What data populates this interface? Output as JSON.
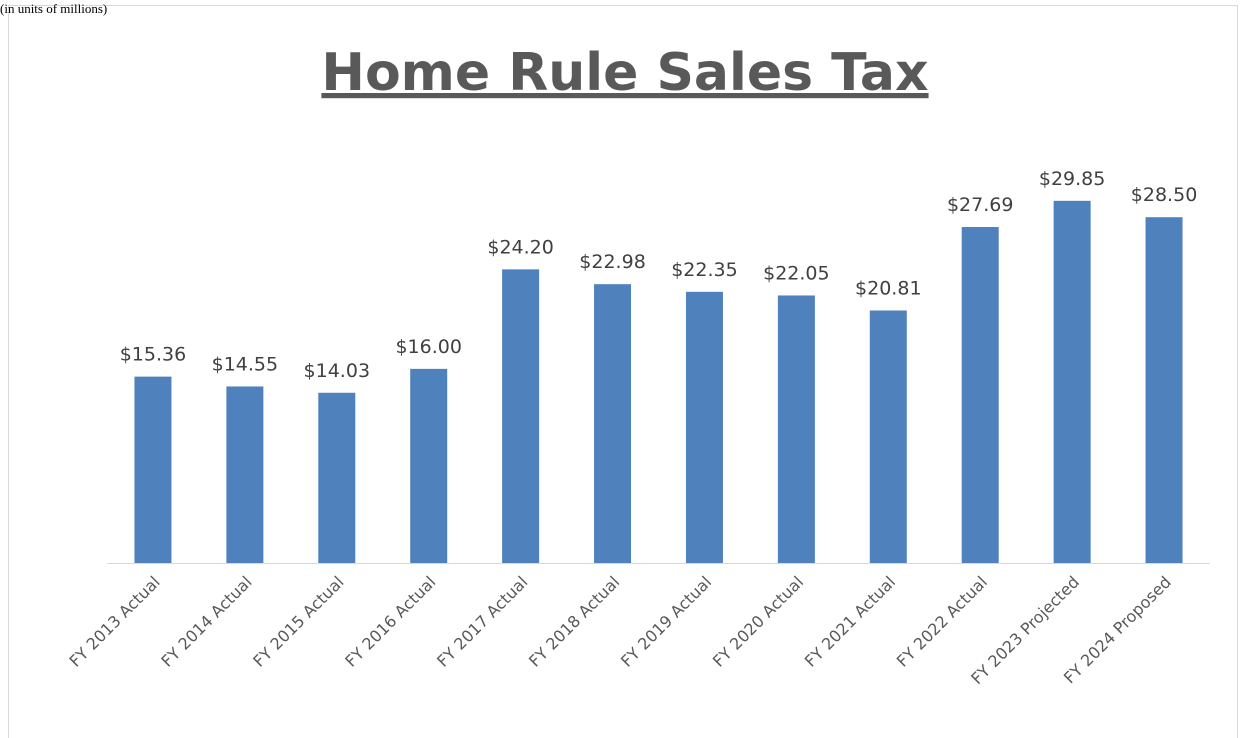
{
  "chart_data": {
    "type": "bar",
    "title": "Home Rule Sales Tax",
    "subtitle": "(in units of millions)",
    "categories": [
      "FY 2013 Actual",
      "FY 2014 Actual",
      "FY 2015 Actual",
      "FY 2016 Actual",
      "FY 2017 Actual",
      "FY 2018 Actual",
      "FY 2019 Actual",
      "FY 2020 Actual",
      "FY 2021 Actual",
      "FY 2022 Actual",
      "FY 2023 Projected",
      "FY 2024 Proposed"
    ],
    "values": [
      15.36,
      14.55,
      14.03,
      16.0,
      24.2,
      22.98,
      22.35,
      22.05,
      20.81,
      27.69,
      29.85,
      28.5
    ],
    "value_labels": [
      "$15.36",
      "$14.55",
      "$14.03",
      "$16.00",
      "$24.20",
      "$22.98",
      "$22.35",
      "$22.05",
      "$20.81",
      "$27.69",
      "$29.85",
      "$28.50"
    ],
    "color": "#4f81bd",
    "ylim": [
      0,
      30
    ]
  }
}
